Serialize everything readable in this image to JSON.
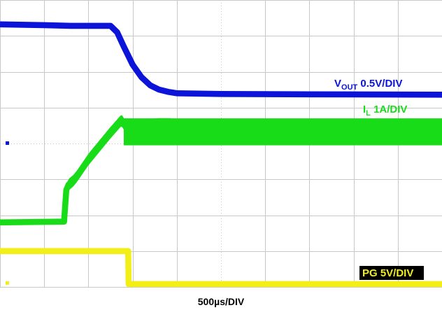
{
  "chart_data": {
    "type": "line",
    "grid": true,
    "grid_divisions": {
      "x": 10,
      "y": 8
    },
    "xlabel": "500µs/DIV",
    "xlim": [
      0,
      10
    ],
    "ylim": [
      0,
      8
    ],
    "x_unit": "div",
    "y_unit": "div",
    "background": "#ffffff",
    "grid_color": "#c8c8c8",
    "series": [
      {
        "name": "VOUT 0.5V/DIV",
        "label_main": "V",
        "label_sub": "OUT",
        "label_rest": " 0.5V/DIV",
        "color": "#0b14d8",
        "thickness": 0.12,
        "x": [
          0,
          1.0,
          1.6,
          2.5,
          2.65,
          2.8,
          3.0,
          3.2,
          3.4,
          3.6,
          3.8,
          4.0,
          5.0,
          7.0,
          10.0
        ],
        "y": [
          7.32,
          7.3,
          7.28,
          7.28,
          7.1,
          6.7,
          6.2,
          5.85,
          5.62,
          5.5,
          5.44,
          5.4,
          5.38,
          5.37,
          5.36
        ]
      },
      {
        "name": "IL 1A/DIV",
        "label_main": "I",
        "label_sub": "L",
        "label_rest": " 1A/DIV",
        "color": "#19dc19",
        "thickness": 0.12,
        "x": [
          0,
          1.45,
          1.5,
          1.55,
          1.65,
          1.75,
          2.0,
          2.5,
          2.75,
          2.85,
          3.0,
          3.3,
          3.6,
          3.85,
          3.9,
          10.0
        ],
        "y": [
          1.8,
          1.82,
          2.7,
          2.85,
          2.95,
          3.1,
          3.55,
          4.3,
          4.65,
          4.45,
          4.5,
          4.6,
          4.62,
          4.62,
          4.3,
          4.3
        ],
        "ripple_band": [
          {
            "x": [
              1.5,
              2.8
            ],
            "half_width": 0.16
          },
          {
            "x": [
              2.8,
              10.0
            ],
            "top": 4.7,
            "bottom": 3.95
          }
        ]
      },
      {
        "name": "PG 5V/DIV",
        "label_main": "PG 5V/DIV",
        "label_sub": "",
        "label_rest": "",
        "color": "#f2ee17",
        "thickness": 0.12,
        "x": [
          0,
          2.9,
          2.91,
          10.0
        ],
        "y": [
          1.0,
          1.0,
          0.08,
          0.08
        ]
      }
    ]
  }
}
